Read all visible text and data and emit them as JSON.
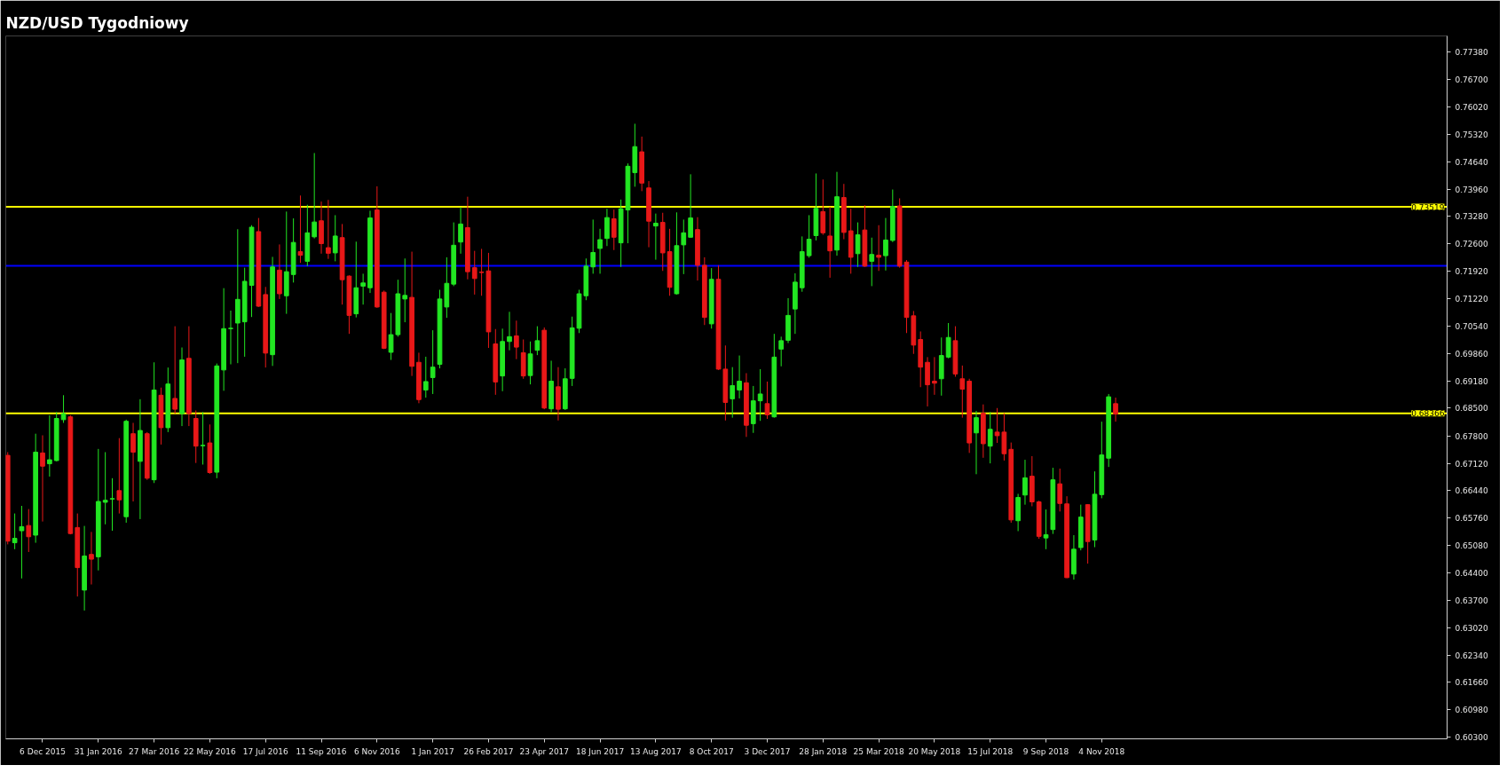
{
  "chart_data": {
    "type": "candlestick",
    "title": "NZD/USD Tygodniowy",
    "x": [
      "2015-11-01",
      "2015-11-08",
      "2015-11-15",
      "2015-11-22",
      "2015-11-29",
      "2015-12-06",
      "2015-12-13",
      "2015-12-20",
      "2015-12-27",
      "2016-01-03",
      "2016-01-10",
      "2016-01-17",
      "2016-01-24",
      "2016-01-31",
      "2016-02-07",
      "2016-02-14",
      "2016-02-21",
      "2016-02-28",
      "2016-03-06",
      "2016-03-13",
      "2016-03-20",
      "2016-03-27",
      "2016-04-03",
      "2016-04-10",
      "2016-04-17",
      "2016-04-24",
      "2016-05-01",
      "2016-05-08",
      "2016-05-15",
      "2016-05-22",
      "2016-05-29",
      "2016-06-05",
      "2016-06-12",
      "2016-06-19",
      "2016-06-26",
      "2016-07-03",
      "2016-07-10",
      "2016-07-17",
      "2016-07-24",
      "2016-07-31",
      "2016-08-07",
      "2016-08-14",
      "2016-08-21",
      "2016-08-28",
      "2016-09-04",
      "2016-09-11",
      "2016-09-18",
      "2016-09-25",
      "2016-10-02",
      "2016-10-09",
      "2016-10-16",
      "2016-10-23",
      "2016-10-30",
      "2016-11-06",
      "2016-11-13",
      "2016-11-20",
      "2016-11-27",
      "2016-12-04",
      "2016-12-11",
      "2016-12-18",
      "2016-12-25",
      "2017-01-01",
      "2017-01-08",
      "2017-01-15",
      "2017-01-22",
      "2017-01-29",
      "2017-02-05",
      "2017-02-12",
      "2017-02-19",
      "2017-02-26",
      "2017-03-05",
      "2017-03-12",
      "2017-03-19",
      "2017-03-26",
      "2017-04-02",
      "2017-04-09",
      "2017-04-16",
      "2017-04-23",
      "2017-04-30",
      "2017-05-07",
      "2017-05-14",
      "2017-05-21",
      "2017-05-28",
      "2017-06-04",
      "2017-06-11",
      "2017-06-18",
      "2017-06-25",
      "2017-07-02",
      "2017-07-09",
      "2017-07-16",
      "2017-07-23",
      "2017-07-30",
      "2017-08-06",
      "2017-08-13",
      "2017-08-20",
      "2017-08-27",
      "2017-09-03",
      "2017-09-10",
      "2017-09-17",
      "2017-09-24",
      "2017-10-01",
      "2017-10-08",
      "2017-10-15",
      "2017-10-22",
      "2017-10-29",
      "2017-11-05",
      "2017-11-12",
      "2017-11-19",
      "2017-11-26",
      "2017-12-03",
      "2017-12-10",
      "2017-12-17",
      "2017-12-24",
      "2017-12-31",
      "2018-01-07",
      "2018-01-14",
      "2018-01-21",
      "2018-01-28",
      "2018-02-04",
      "2018-02-11",
      "2018-02-18",
      "2018-02-25",
      "2018-03-04",
      "2018-03-11",
      "2018-03-18",
      "2018-03-25",
      "2018-04-01",
      "2018-04-08",
      "2018-04-15",
      "2018-04-22",
      "2018-04-29",
      "2018-05-06",
      "2018-05-13",
      "2018-05-20",
      "2018-05-27",
      "2018-06-03",
      "2018-06-10",
      "2018-06-17",
      "2018-06-24",
      "2018-07-01",
      "2018-07-08",
      "2018-07-15",
      "2018-07-22",
      "2018-07-29",
      "2018-08-05",
      "2018-08-12",
      "2018-08-19",
      "2018-08-26",
      "2018-09-02",
      "2018-09-09",
      "2018-09-16",
      "2018-09-23",
      "2018-09-30",
      "2018-10-07",
      "2018-10-14",
      "2018-10-21",
      "2018-10-28",
      "2018-11-04",
      "2018-11-11",
      "2018-11-18"
    ],
    "ohlc": [
      [
        0.6732,
        0.674,
        0.651,
        0.6518
      ],
      [
        0.6514,
        0.6587,
        0.6498,
        0.6525
      ],
      [
        0.6544,
        0.6606,
        0.6425,
        0.6554
      ],
      [
        0.6557,
        0.6598,
        0.6491,
        0.6529
      ],
      [
        0.6533,
        0.6786,
        0.6514,
        0.674
      ],
      [
        0.6738,
        0.6782,
        0.6567,
        0.6705
      ],
      [
        0.6711,
        0.6832,
        0.6679,
        0.6721
      ],
      [
        0.6719,
        0.684,
        0.6717,
        0.6824
      ],
      [
        0.6821,
        0.6882,
        0.6813,
        0.6836
      ],
      [
        0.6828,
        0.6832,
        0.6535,
        0.6537
      ],
      [
        0.6552,
        0.6587,
        0.638,
        0.6452
      ],
      [
        0.6396,
        0.6556,
        0.6345,
        0.6481
      ],
      [
        0.6485,
        0.6541,
        0.641,
        0.6473
      ],
      [
        0.6479,
        0.6748,
        0.6445,
        0.6617
      ],
      [
        0.6615,
        0.674,
        0.656,
        0.662
      ],
      [
        0.6623,
        0.6675,
        0.6544,
        0.6624
      ],
      [
        0.6644,
        0.6775,
        0.6587,
        0.6621
      ],
      [
        0.6579,
        0.6821,
        0.6564,
        0.6817
      ],
      [
        0.6786,
        0.6813,
        0.6617,
        0.674
      ],
      [
        0.6717,
        0.6872,
        0.6573,
        0.6794
      ],
      [
        0.6786,
        0.679,
        0.6671,
        0.6675
      ],
      [
        0.6671,
        0.6964,
        0.6663,
        0.6895
      ],
      [
        0.6882,
        0.6901,
        0.6759,
        0.6801
      ],
      [
        0.6801,
        0.6951,
        0.679,
        0.691
      ],
      [
        0.6874,
        0.7054,
        0.6836,
        0.6847
      ],
      [
        0.6836,
        0.7001,
        0.6805,
        0.697
      ],
      [
        0.6974,
        0.7054,
        0.6805,
        0.6836
      ],
      [
        0.6824,
        0.6844,
        0.6713,
        0.6755
      ],
      [
        0.6756,
        0.684,
        0.6709,
        0.6757
      ],
      [
        0.6763,
        0.6809,
        0.6686,
        0.6689
      ],
      [
        0.669,
        0.6961,
        0.6675,
        0.6955
      ],
      [
        0.6945,
        0.7149,
        0.6893,
        0.7048
      ],
      [
        0.7048,
        0.7093,
        0.6959,
        0.7049
      ],
      [
        0.7062,
        0.7296,
        0.6962,
        0.7121
      ],
      [
        0.7065,
        0.72,
        0.6978,
        0.7166
      ],
      [
        0.7156,
        0.7306,
        0.7077,
        0.7301
      ],
      [
        0.729,
        0.7324,
        0.7102,
        0.7104
      ],
      [
        0.7133,
        0.7152,
        0.6951,
        0.6987
      ],
      [
        0.6983,
        0.7227,
        0.6955,
        0.7202
      ],
      [
        0.7194,
        0.7258,
        0.7122,
        0.7135
      ],
      [
        0.713,
        0.734,
        0.7085,
        0.719
      ],
      [
        0.7183,
        0.7323,
        0.7163,
        0.7263
      ],
      [
        0.724,
        0.738,
        0.7212,
        0.7231
      ],
      [
        0.7216,
        0.7357,
        0.7204,
        0.7287
      ],
      [
        0.7277,
        0.7486,
        0.7273,
        0.7314
      ],
      [
        0.7317,
        0.7365,
        0.7235,
        0.726
      ],
      [
        0.725,
        0.7369,
        0.7222,
        0.7236
      ],
      [
        0.7237,
        0.7331,
        0.7216,
        0.7279
      ],
      [
        0.7275,
        0.7309,
        0.7108,
        0.717
      ],
      [
        0.7179,
        0.7181,
        0.7035,
        0.7081
      ],
      [
        0.7085,
        0.7265,
        0.7076,
        0.715
      ],
      [
        0.7154,
        0.7185,
        0.7108,
        0.7162
      ],
      [
        0.715,
        0.7342,
        0.7137,
        0.7324
      ],
      [
        0.7344,
        0.7403,
        0.71,
        0.7102
      ],
      [
        0.7139,
        0.7143,
        0.6997,
        0.6999
      ],
      [
        0.6989,
        0.7087,
        0.697,
        0.7033
      ],
      [
        0.7033,
        0.717,
        0.7028,
        0.7135
      ],
      [
        0.7122,
        0.7223,
        0.7064,
        0.7131
      ],
      [
        0.7126,
        0.724,
        0.693,
        0.6954
      ],
      [
        0.6964,
        0.6988,
        0.6862,
        0.6871
      ],
      [
        0.6895,
        0.6978,
        0.6876,
        0.6916
      ],
      [
        0.6926,
        0.7044,
        0.6885,
        0.6952
      ],
      [
        0.6959,
        0.7145,
        0.6949,
        0.7122
      ],
      [
        0.7102,
        0.7226,
        0.7075,
        0.7161
      ],
      [
        0.7159,
        0.7313,
        0.7154,
        0.7256
      ],
      [
        0.7264,
        0.7351,
        0.7235,
        0.7309
      ],
      [
        0.73,
        0.7377,
        0.7171,
        0.719
      ],
      [
        0.72,
        0.7242,
        0.7133,
        0.7173
      ],
      [
        0.7189,
        0.7247,
        0.713,
        0.7188
      ],
      [
        0.7192,
        0.7237,
        0.7,
        0.704
      ],
      [
        0.701,
        0.7047,
        0.6883,
        0.6915
      ],
      [
        0.693,
        0.7048,
        0.6892,
        0.7016
      ],
      [
        0.7016,
        0.709,
        0.6994,
        0.7028
      ],
      [
        0.703,
        0.7068,
        0.6972,
        0.7002
      ],
      [
        0.6988,
        0.7021,
        0.6923,
        0.693
      ],
      [
        0.6931,
        0.7016,
        0.6909,
        0.6985
      ],
      [
        0.6994,
        0.7054,
        0.6982,
        0.7018
      ],
      [
        0.7044,
        0.7051,
        0.6847,
        0.685
      ],
      [
        0.6848,
        0.6968,
        0.684,
        0.6917
      ],
      [
        0.6903,
        0.6952,
        0.6819,
        0.6847
      ],
      [
        0.6848,
        0.6949,
        0.6845,
        0.6923
      ],
      [
        0.6924,
        0.7078,
        0.6905,
        0.705
      ],
      [
        0.7049,
        0.7145,
        0.7037,
        0.7135
      ],
      [
        0.713,
        0.7223,
        0.7119,
        0.7204
      ],
      [
        0.7202,
        0.732,
        0.7185,
        0.7238
      ],
      [
        0.7248,
        0.7297,
        0.7185,
        0.727
      ],
      [
        0.7273,
        0.7347,
        0.7254,
        0.7325
      ],
      [
        0.7322,
        0.7345,
        0.7244,
        0.7276
      ],
      [
        0.7262,
        0.737,
        0.7202,
        0.7347
      ],
      [
        0.7344,
        0.746,
        0.7261,
        0.7453
      ],
      [
        0.7437,
        0.7559,
        0.7402,
        0.7502
      ],
      [
        0.7489,
        0.7527,
        0.7391,
        0.7411
      ],
      [
        0.7399,
        0.7416,
        0.7251,
        0.7316
      ],
      [
        0.7304,
        0.7335,
        0.722,
        0.7311
      ],
      [
        0.7313,
        0.7337,
        0.7192,
        0.7237
      ],
      [
        0.724,
        0.7297,
        0.713,
        0.7151
      ],
      [
        0.7135,
        0.7338,
        0.7133,
        0.7255
      ],
      [
        0.7257,
        0.732,
        0.7184,
        0.7287
      ],
      [
        0.7276,
        0.7433,
        0.7275,
        0.7324
      ],
      [
        0.7295,
        0.7326,
        0.7168,
        0.7206
      ],
      [
        0.7206,
        0.7226,
        0.7057,
        0.7076
      ],
      [
        0.706,
        0.7199,
        0.7048,
        0.7171
      ],
      [
        0.7171,
        0.7206,
        0.6945,
        0.6947
      ],
      [
        0.6947,
        0.7006,
        0.6819,
        0.6864
      ],
      [
        0.6873,
        0.6952,
        0.6826,
        0.6906
      ],
      [
        0.6895,
        0.6981,
        0.6874,
        0.6917
      ],
      [
        0.6913,
        0.6937,
        0.6778,
        0.6807
      ],
      [
        0.6811,
        0.6905,
        0.6788,
        0.6868
      ],
      [
        0.6868,
        0.6947,
        0.6818,
        0.6885
      ],
      [
        0.6861,
        0.6916,
        0.6823,
        0.6833
      ],
      [
        0.6828,
        0.7035,
        0.6826,
        0.6977
      ],
      [
        0.6997,
        0.7028,
        0.6954,
        0.7018
      ],
      [
        0.7019,
        0.7124,
        0.7012,
        0.7081
      ],
      [
        0.7097,
        0.7186,
        0.7035,
        0.7164
      ],
      [
        0.715,
        0.7278,
        0.714,
        0.724
      ],
      [
        0.723,
        0.7331,
        0.7225,
        0.7271
      ],
      [
        0.728,
        0.7435,
        0.7268,
        0.7348
      ],
      [
        0.734,
        0.742,
        0.7282,
        0.7287
      ],
      [
        0.7279,
        0.7352,
        0.7175,
        0.7242
      ],
      [
        0.7244,
        0.7439,
        0.723,
        0.7377
      ],
      [
        0.7375,
        0.7409,
        0.7271,
        0.7288
      ],
      [
        0.7292,
        0.7347,
        0.7185,
        0.7226
      ],
      [
        0.7235,
        0.7313,
        0.7202,
        0.7282
      ],
      [
        0.7294,
        0.7356,
        0.7202,
        0.7204
      ],
      [
        0.7216,
        0.7275,
        0.7154,
        0.7233
      ],
      [
        0.7231,
        0.7306,
        0.7192,
        0.7226
      ],
      [
        0.723,
        0.7324,
        0.7193,
        0.7269
      ],
      [
        0.7268,
        0.7395,
        0.7264,
        0.7353
      ],
      [
        0.7354,
        0.7373,
        0.72,
        0.7204
      ],
      [
        0.7214,
        0.7219,
        0.7037,
        0.7076
      ],
      [
        0.708,
        0.7092,
        0.6985,
        0.7007
      ],
      [
        0.7021,
        0.7041,
        0.6902,
        0.6952
      ],
      [
        0.6964,
        0.6977,
        0.6854,
        0.6908
      ],
      [
        0.6917,
        0.6977,
        0.6883,
        0.6912
      ],
      [
        0.6923,
        0.7026,
        0.6881,
        0.6981
      ],
      [
        0.6977,
        0.7062,
        0.6974,
        0.7026
      ],
      [
        0.7018,
        0.7054,
        0.6928,
        0.6935
      ],
      [
        0.6923,
        0.6956,
        0.6826,
        0.6897
      ],
      [
        0.6917,
        0.6923,
        0.6738,
        0.6763
      ],
      [
        0.6788,
        0.6843,
        0.6685,
        0.6826
      ],
      [
        0.6837,
        0.6859,
        0.6726,
        0.6761
      ],
      [
        0.6755,
        0.684,
        0.6712,
        0.6797
      ],
      [
        0.679,
        0.685,
        0.6763,
        0.6781
      ],
      [
        0.679,
        0.6837,
        0.6719,
        0.6736
      ],
      [
        0.6747,
        0.6764,
        0.6564,
        0.6571
      ],
      [
        0.6569,
        0.6636,
        0.6543,
        0.6627
      ],
      [
        0.6633,
        0.6721,
        0.6609,
        0.6676
      ],
      [
        0.668,
        0.673,
        0.6605,
        0.6616
      ],
      [
        0.6616,
        0.6619,
        0.6524,
        0.653
      ],
      [
        0.6526,
        0.6597,
        0.6498,
        0.6534
      ],
      [
        0.6547,
        0.6701,
        0.6536,
        0.6671
      ],
      [
        0.6661,
        0.6699,
        0.6592,
        0.6612
      ],
      [
        0.6611,
        0.663,
        0.6426,
        0.6427
      ],
      [
        0.6436,
        0.6533,
        0.6422,
        0.6498
      ],
      [
        0.6502,
        0.6609,
        0.6495,
        0.6578
      ],
      [
        0.6609,
        0.661,
        0.6462,
        0.6517
      ],
      [
        0.6521,
        0.6692,
        0.6503,
        0.6635
      ],
      [
        0.6634,
        0.6816,
        0.6625,
        0.6733
      ],
      [
        0.6725,
        0.6885,
        0.6703,
        0.6878
      ],
      [
        0.6861,
        0.6876,
        0.6816,
        0.6835
      ]
    ],
    "colors": [
      "#e81818",
      "#22e622",
      "#22e622",
      "#e81818",
      "#22e622",
      "#e81818",
      "#22e622",
      "#22e622",
      "#22e622",
      "#e81818",
      "#e81818",
      "#22e622",
      "#e81818",
      "#22e622",
      "#22e622",
      "#22e622",
      "#e81818",
      "#22e622",
      "#e81818",
      "#22e622",
      "#e81818",
      "#22e622",
      "#e81818",
      "#22e622",
      "#e81818",
      "#22e622",
      "#e81818",
      "#e81818",
      "#22e622",
      "#e81818",
      "#22e622",
      "#22e622",
      "#22e622",
      "#22e622",
      "#22e622",
      "#22e622",
      "#e81818",
      "#e81818",
      "#22e622",
      "#e81818",
      "#22e622",
      "#22e622",
      "#e81818",
      "#22e622",
      "#22e622",
      "#e81818",
      "#e81818",
      "#22e622",
      "#e81818",
      "#e81818",
      "#22e622",
      "#22e622",
      "#22e622",
      "#e81818",
      "#e81818",
      "#22e622",
      "#22e622",
      "#22e622",
      "#e81818",
      "#e81818",
      "#22e622",
      "#22e622",
      "#22e622",
      "#22e622",
      "#22e622",
      "#22e622",
      "#e81818",
      "#e81818",
      "#e81818",
      "#e81818",
      "#e81818",
      "#22e622",
      "#22e622",
      "#e81818",
      "#e81818",
      "#22e622",
      "#22e622",
      "#e81818",
      "#22e622",
      "#e81818",
      "#22e622",
      "#22e622",
      "#22e622",
      "#22e622",
      "#22e622",
      "#22e622",
      "#22e622",
      "#e81818",
      "#22e622",
      "#22e622",
      "#22e622",
      "#e81818",
      "#e81818",
      "#22e622",
      "#e81818",
      "#e81818",
      "#22e622",
      "#22e622",
      "#22e622",
      "#e81818",
      "#e81818",
      "#22e622",
      "#e81818",
      "#e81818",
      "#22e622",
      "#22e622",
      "#e81818",
      "#22e622",
      "#22e622",
      "#e81818",
      "#22e622",
      "#22e622",
      "#22e622",
      "#22e622",
      "#22e622",
      "#22e622",
      "#22e622",
      "#e81818",
      "#e81818",
      "#22e622",
      "#e81818",
      "#e81818",
      "#22e622",
      "#e81818",
      "#22e622",
      "#e81818",
      "#22e622",
      "#22e622",
      "#e81818",
      "#e81818",
      "#e81818",
      "#e81818",
      "#e81818",
      "#e81818",
      "#22e622",
      "#22e622",
      "#e81818",
      "#e81818",
      "#e81818",
      "#22e622",
      "#e81818",
      "#22e622",
      "#e81818",
      "#e81818",
      "#e81818",
      "#22e622",
      "#22e622",
      "#e81818",
      "#e81818",
      "#22e622",
      "#22e622",
      "#e81818",
      "#e81818",
      "#22e622",
      "#22e622",
      "#e81818",
      "#22e622",
      "#22e622",
      "#22e622",
      "#e81818"
    ],
    "xlim": [
      "2015-10-30",
      "2019-10-17"
    ],
    "ylim": [
      0.6025,
      0.7778
    ],
    "xticks": [
      {
        "value": "2015-12-06",
        "label": "6 Dec 2015"
      },
      {
        "value": "2016-01-31",
        "label": "31 Jan 2016"
      },
      {
        "value": "2016-03-27",
        "label": "27 Mar 2016"
      },
      {
        "value": "2016-05-22",
        "label": "22 May 2016"
      },
      {
        "value": "2016-07-17",
        "label": "17 Jul 2016"
      },
      {
        "value": "2016-09-11",
        "label": "11 Sep 2016"
      },
      {
        "value": "2016-11-06",
        "label": "6 Nov 2016"
      },
      {
        "value": "2017-01-01",
        "label": "1 Jan 2017"
      },
      {
        "value": "2017-02-26",
        "label": "26 Feb 2017"
      },
      {
        "value": "2017-04-23",
        "label": "23 Apr 2017"
      },
      {
        "value": "2017-06-18",
        "label": "18 Jun 2017"
      },
      {
        "value": "2017-08-13",
        "label": "13 Aug 2017"
      },
      {
        "value": "2017-10-08",
        "label": "8 Oct 2017"
      },
      {
        "value": "2017-12-03",
        "label": "3 Dec 2017"
      },
      {
        "value": "2018-01-28",
        "label": "28 Jan 2018"
      },
      {
        "value": "2018-03-25",
        "label": "25 Mar 2018"
      },
      {
        "value": "2018-05-20",
        "label": "20 May 2018"
      },
      {
        "value": "2018-07-15",
        "label": "15 Jul 2018"
      },
      {
        "value": "2018-09-09",
        "label": "9 Sep 2018"
      },
      {
        "value": "2018-11-04",
        "label": "4 Nov 2018"
      }
    ],
    "yticks": [
      {
        "value": 0.7738,
        "label": "0.77380"
      },
      {
        "value": 0.767,
        "label": "0.76700"
      },
      {
        "value": 0.7602,
        "label": "0.76020"
      },
      {
        "value": 0.7532,
        "label": "0.75320"
      },
      {
        "value": 0.7464,
        "label": "0.74640"
      },
      {
        "value": 0.7396,
        "label": "0.73960"
      },
      {
        "value": 0.7328,
        "label": "0.73280"
      },
      {
        "value": 0.726,
        "label": "0.72600"
      },
      {
        "value": 0.7192,
        "label": "0.71920"
      },
      {
        "value": 0.7122,
        "label": "0.71220"
      },
      {
        "value": 0.7054,
        "label": "0.70540"
      },
      {
        "value": 0.6986,
        "label": "0.69860"
      },
      {
        "value": 0.6918,
        "label": "0.69180"
      },
      {
        "value": 0.685,
        "label": "0.68500"
      },
      {
        "value": 0.678,
        "label": "0.67800"
      },
      {
        "value": 0.6712,
        "label": "0.67120"
      },
      {
        "value": 0.6644,
        "label": "0.66440"
      },
      {
        "value": 0.6576,
        "label": "0.65760"
      },
      {
        "value": 0.6508,
        "label": "0.65080"
      },
      {
        "value": 0.644,
        "label": "0.64400"
      },
      {
        "value": 0.637,
        "label": "0.63700"
      },
      {
        "value": 0.6302,
        "label": "0.63020"
      },
      {
        "value": 0.6234,
        "label": "0.62340"
      },
      {
        "value": 0.6166,
        "label": "0.61660"
      },
      {
        "value": 0.6098,
        "label": "0.60980"
      },
      {
        "value": 0.603,
        "label": "0.60300"
      }
    ],
    "ref_lines": [
      {
        "axis": "y",
        "value": 0.73519,
        "label": "0.73519",
        "color": "#ffff00"
      },
      {
        "axis": "y",
        "value": 0.7205,
        "color": "#0000ff"
      },
      {
        "axis": "y",
        "value": 0.68366,
        "label": "0.68366",
        "color": "#ffff00"
      }
    ]
  }
}
